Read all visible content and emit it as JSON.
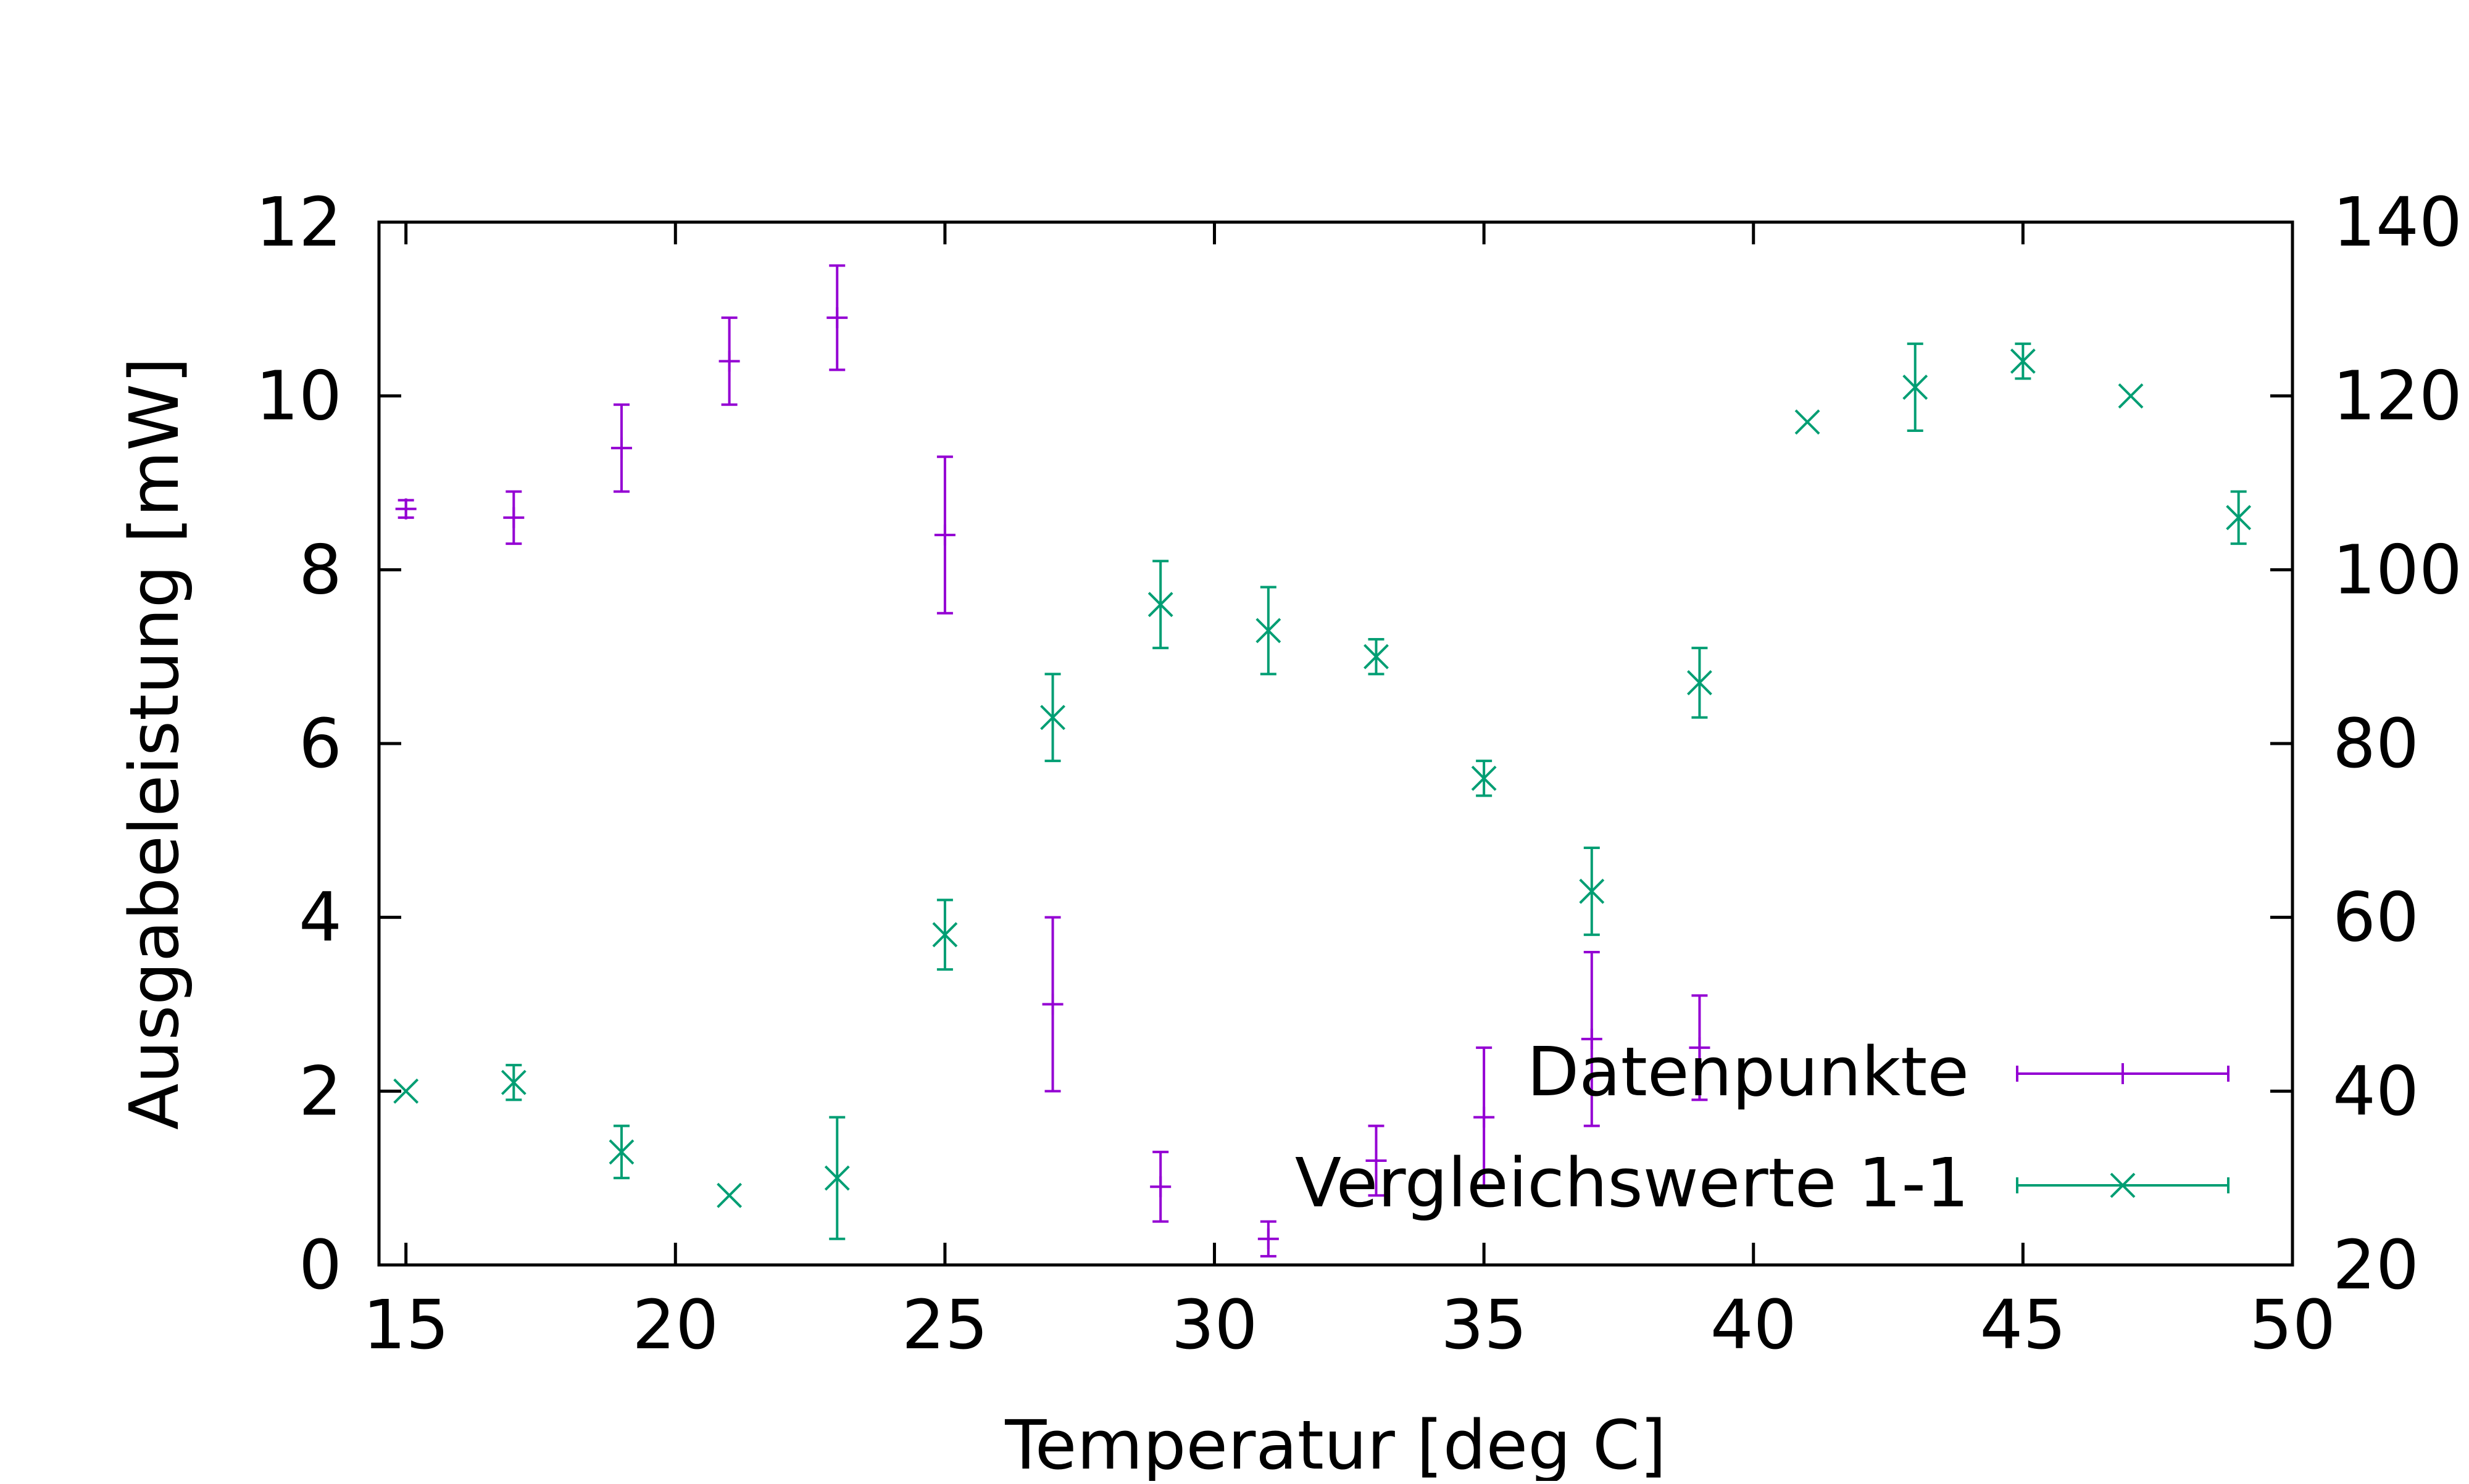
{
  "chart_data": {
    "type": "scatter",
    "title": "",
    "xlabel": "Temperatur [deg C]",
    "ylabel": "Ausgabeleistung [mW]",
    "y2label": "",
    "xlim": [
      14.5,
      50
    ],
    "ylim": [
      0,
      12
    ],
    "y2lim": [
      20,
      140
    ],
    "xticks": [
      15,
      20,
      25,
      30,
      35,
      40,
      45,
      50
    ],
    "yticks": [
      0,
      2,
      4,
      6,
      8,
      10,
      12
    ],
    "y2ticks": [
      20,
      40,
      60,
      80,
      100,
      120,
      140
    ],
    "grid": false,
    "legend_position": "bottom-right",
    "series": [
      {
        "name": "Datenpunkte",
        "axis": "left",
        "marker": "plus",
        "color": "#9400d3",
        "points": [
          {
            "x": 15,
            "y": 8.7,
            "err": 0.1
          },
          {
            "x": 17,
            "y": 8.6,
            "err": 0.3
          },
          {
            "x": 19,
            "y": 9.4,
            "err": 0.5
          },
          {
            "x": 21,
            "y": 10.4,
            "err": 0.5
          },
          {
            "x": 23,
            "y": 10.9,
            "err": 0.6
          },
          {
            "x": 25,
            "y": 8.4,
            "err": 0.9
          },
          {
            "x": 27,
            "y": 3.0,
            "err": 1.0
          },
          {
            "x": 29,
            "y": 0.9,
            "err": 0.4
          },
          {
            "x": 31,
            "y": 0.3,
            "err": 0.2
          },
          {
            "x": 33,
            "y": 1.2,
            "err": 0.4
          },
          {
            "x": 35,
            "y": 1.7,
            "err": 0.8
          },
          {
            "x": 37,
            "y": 2.6,
            "err": 1.0
          },
          {
            "x": 39,
            "y": 2.5,
            "err": 0.6
          }
        ]
      },
      {
        "name": "Vergleichswerte 1-1",
        "axis": "right",
        "marker": "cross",
        "color": "#009e73",
        "points": [
          {
            "x": 15,
            "y": 40,
            "err": 0
          },
          {
            "x": 17,
            "y": 41,
            "err": 2
          },
          {
            "x": 19,
            "y": 33,
            "err": 3
          },
          {
            "x": 21,
            "y": 28,
            "err": 0
          },
          {
            "x": 23,
            "y": 30,
            "err": 7
          },
          {
            "x": 25,
            "y": 58,
            "err": 4
          },
          {
            "x": 27,
            "y": 83,
            "err": 5
          },
          {
            "x": 29,
            "y": 96,
            "err": 5
          },
          {
            "x": 31,
            "y": 93,
            "err": 5
          },
          {
            "x": 33,
            "y": 90,
            "err": 2
          },
          {
            "x": 35,
            "y": 76,
            "err": 2
          },
          {
            "x": 37,
            "y": 63,
            "err": 5
          },
          {
            "x": 39,
            "y": 87,
            "err": 4
          },
          {
            "x": 41,
            "y": 117,
            "err": 0
          },
          {
            "x": 43,
            "y": 121,
            "err": 5
          },
          {
            "x": 45,
            "y": 124,
            "err": 2
          },
          {
            "x": 47,
            "y": 120,
            "err": 0
          },
          {
            "x": 49,
            "y": 106,
            "err": 3
          }
        ]
      }
    ]
  }
}
